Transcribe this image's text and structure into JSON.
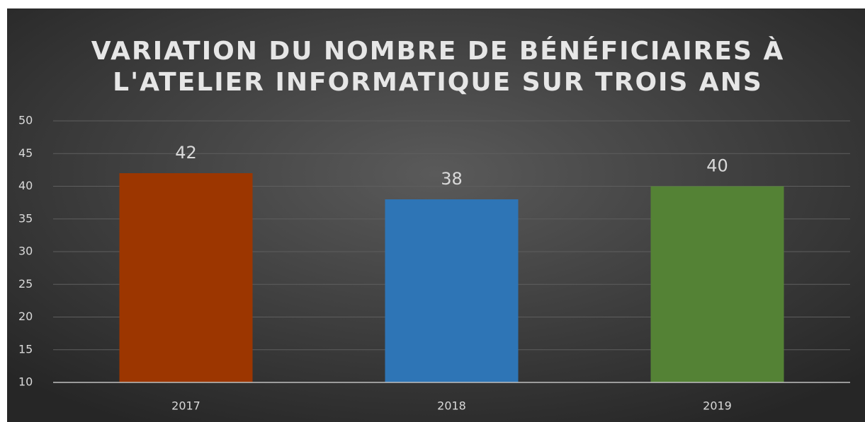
{
  "chart_data": {
    "type": "bar",
    "title": [
      "VARIATION DU NOMBRE DE BÉNÉFICIAIRES À",
      "L'ATELIER INFORMATIQUE SUR TROIS ANS"
    ],
    "categories": [
      "2017",
      "2018",
      "2019"
    ],
    "values": [
      42,
      38,
      40
    ],
    "colors": [
      "#9c3600",
      "#2e75b6",
      "#548235"
    ],
    "ylim": [
      10,
      50
    ],
    "yticks": [
      10,
      15,
      20,
      25,
      30,
      35,
      40,
      45,
      50
    ],
    "grid": true
  }
}
